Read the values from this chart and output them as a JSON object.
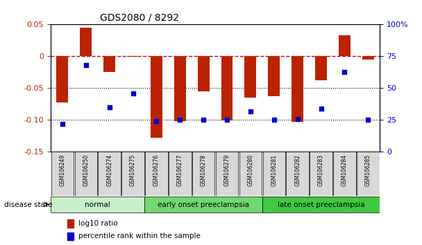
{
  "title": "GDS2080 / 8292",
  "samples": [
    "GSM106249",
    "GSM106250",
    "GSM106274",
    "GSM106275",
    "GSM106276",
    "GSM106277",
    "GSM106278",
    "GSM106279",
    "GSM106280",
    "GSM106281",
    "GSM106282",
    "GSM106283",
    "GSM106284",
    "GSM106285"
  ],
  "log10_ratio": [
    -0.072,
    0.045,
    -0.025,
    -0.001,
    -0.128,
    -0.102,
    -0.055,
    -0.101,
    -0.065,
    -0.063,
    -0.103,
    -0.038,
    0.033,
    -0.005
  ],
  "percentile_rank": [
    22,
    68,
    35,
    46,
    24,
    25,
    25,
    25,
    32,
    25,
    26,
    34,
    63,
    25
  ],
  "groups": [
    {
      "label": "normal",
      "start": 0,
      "end": 4,
      "color": "#c8f0c8"
    },
    {
      "label": "early onset preeclampsia",
      "start": 4,
      "end": 9,
      "color": "#70d870"
    },
    {
      "label": "late onset preeclampsia",
      "start": 9,
      "end": 14,
      "color": "#40c840"
    }
  ],
  "ylim_left": [
    -0.15,
    0.05
  ],
  "ylim_right": [
    0,
    100
  ],
  "yticks_left": [
    -0.15,
    -0.1,
    -0.05,
    0,
    0.05
  ],
  "yticks_right": [
    0,
    25,
    50,
    75,
    100
  ],
  "bar_color": "#bb2200",
  "dot_color": "#0000cc",
  "hline_color": "#cc0000",
  "dot_line_color": "#0000cc",
  "background_color": "#ffffff"
}
